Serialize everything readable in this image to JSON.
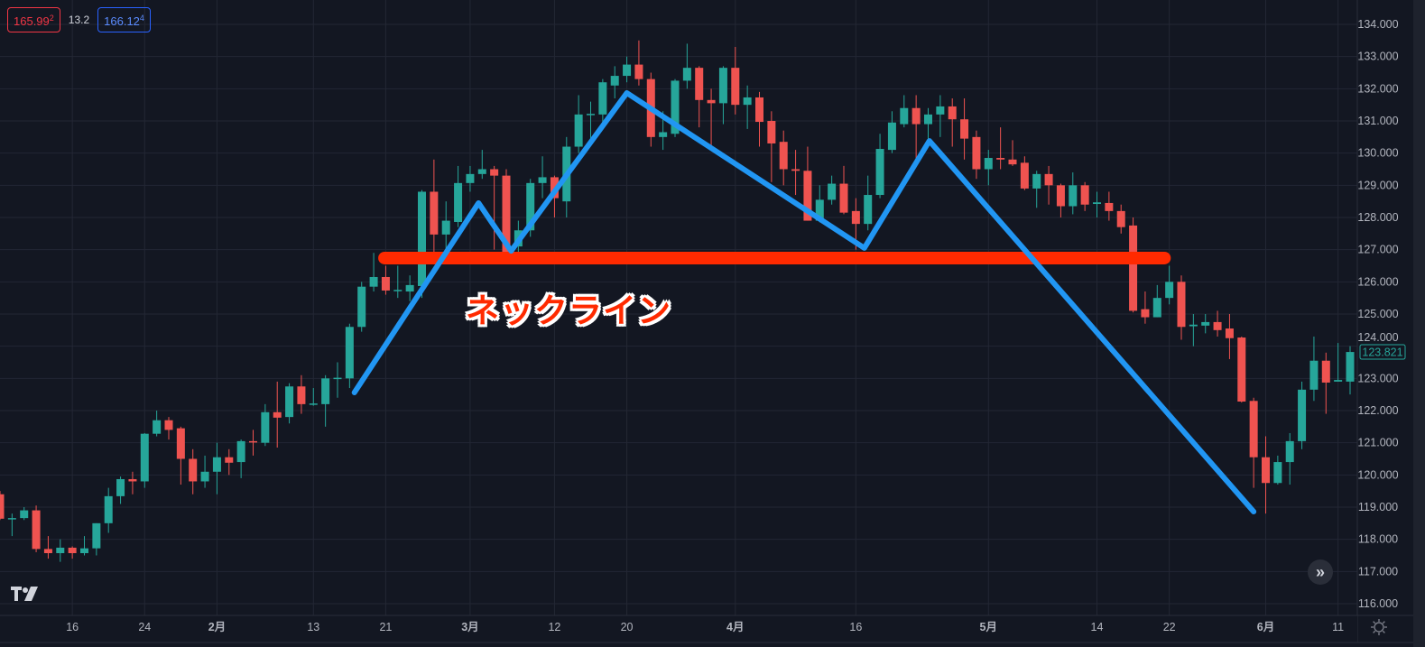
{
  "legend": {
    "bid": "165.99",
    "bid_sup": "2",
    "spread": "13.2",
    "ask": "166.12",
    "ask_sup": "4"
  },
  "colors": {
    "background": "#131722",
    "grid": "#232734",
    "up": "#26a69a",
    "down": "#ef5350",
    "zigzag": "#2196f3",
    "neckline": "#ff2a00",
    "axis_text": "#b2b5be"
  },
  "icons": {
    "logo": "tradingview-logo",
    "scroll": "double-chevron-right-icon",
    "settings": "gear-icon"
  },
  "chart_data": {
    "type": "candlestick",
    "ylim": [
      116,
      134
    ],
    "grid": true,
    "y_ticks": [
      "134.000",
      "133.000",
      "132.000",
      "131.000",
      "130.000",
      "129.000",
      "128.000",
      "127.000",
      "126.000",
      "125.000",
      "124.000",
      "123.000",
      "122.000",
      "121.000",
      "120.000",
      "119.000",
      "118.000",
      "117.000",
      "116.000"
    ],
    "last_price": "123.821",
    "x_ticks": [
      {
        "label": "16",
        "candle": 6
      },
      {
        "label": "24",
        "candle": 12
      },
      {
        "label": "2月",
        "candle": 18,
        "bold": true
      },
      {
        "label": "13",
        "candle": 26
      },
      {
        "label": "21",
        "candle": 32
      },
      {
        "label": "3月",
        "candle": 39,
        "bold": true
      },
      {
        "label": "12",
        "candle": 46
      },
      {
        "label": "20",
        "candle": 52
      },
      {
        "label": "4月",
        "candle": 61,
        "bold": true
      },
      {
        "label": "16",
        "candle": 71
      },
      {
        "label": "5月",
        "candle": 82,
        "bold": true
      },
      {
        "label": "14",
        "candle": 91
      },
      {
        "label": "22",
        "candle": 97
      },
      {
        "label": "6月",
        "candle": 105,
        "bold": true
      },
      {
        "label": "11",
        "candle": 111
      }
    ],
    "ohlc_fields": [
      "open",
      "high",
      "low",
      "close"
    ],
    "candles": [
      [
        119.4,
        119.5,
        118.6,
        118.64
      ],
      [
        118.64,
        118.8,
        118.1,
        118.66
      ],
      [
        118.66,
        119.0,
        118.6,
        118.9
      ],
      [
        118.9,
        119.05,
        117.6,
        117.7
      ],
      [
        117.7,
        118.1,
        117.4,
        117.57
      ],
      [
        117.57,
        118.0,
        117.3,
        117.74
      ],
      [
        117.74,
        117.78,
        117.4,
        117.57
      ],
      [
        117.57,
        118.1,
        117.5,
        117.72
      ],
      [
        117.72,
        118.5,
        117.5,
        118.5
      ],
      [
        118.5,
        119.6,
        118.2,
        119.34
      ],
      [
        119.34,
        119.95,
        119.1,
        119.87
      ],
      [
        119.87,
        120.1,
        119.4,
        119.8
      ],
      [
        119.8,
        121.3,
        119.6,
        121.28
      ],
      [
        121.28,
        122.0,
        121.2,
        121.7
      ],
      [
        121.7,
        121.8,
        121.1,
        121.4
      ],
      [
        121.45,
        121.5,
        119.7,
        120.5
      ],
      [
        120.5,
        120.8,
        119.4,
        119.8
      ],
      [
        119.8,
        120.6,
        119.6,
        120.1
      ],
      [
        120.1,
        121.0,
        119.4,
        120.55
      ],
      [
        120.55,
        120.8,
        120.0,
        120.38
      ],
      [
        120.4,
        121.1,
        119.9,
        121.05
      ],
      [
        121.05,
        121.4,
        120.6,
        121.02
      ],
      [
        121.0,
        122.2,
        120.9,
        121.95
      ],
      [
        121.95,
        122.9,
        120.85,
        121.78
      ],
      [
        121.8,
        122.85,
        121.6,
        122.75
      ],
      [
        122.75,
        123.1,
        121.9,
        122.2
      ],
      [
        122.2,
        122.7,
        122.15,
        122.22
      ],
      [
        122.2,
        123.1,
        121.5,
        123.0
      ],
      [
        123.0,
        123.5,
        122.4,
        123.02
      ],
      [
        123.0,
        124.7,
        122.7,
        124.6
      ],
      [
        124.6,
        126.0,
        124.45,
        125.85
      ],
      [
        125.85,
        126.9,
        125.7,
        126.15
      ],
      [
        126.15,
        126.5,
        125.6,
        125.73
      ],
      [
        125.73,
        126.5,
        125.5,
        125.75
      ],
      [
        125.7,
        126.2,
        125.4,
        125.9
      ],
      [
        125.87,
        128.85,
        125.5,
        128.8
      ],
      [
        128.8,
        129.8,
        126.9,
        127.47
      ],
      [
        127.47,
        128.5,
        127.0,
        127.9
      ],
      [
        127.86,
        129.6,
        127.7,
        129.07
      ],
      [
        129.07,
        129.6,
        128.8,
        129.35
      ],
      [
        129.35,
        130.1,
        129.2,
        129.5
      ],
      [
        129.5,
        129.6,
        127.0,
        129.3
      ],
      [
        129.3,
        129.5,
        126.7,
        126.9
      ],
      [
        127.1,
        127.9,
        126.9,
        127.6
      ],
      [
        127.6,
        129.2,
        127.4,
        129.07
      ],
      [
        129.07,
        129.9,
        128.6,
        129.25
      ],
      [
        129.25,
        129.3,
        128.0,
        128.6
      ],
      [
        128.5,
        130.5,
        128.0,
        130.2
      ],
      [
        130.2,
        131.8,
        130.0,
        131.2
      ],
      [
        131.2,
        131.6,
        130.3,
        131.22
      ],
      [
        131.2,
        132.3,
        130.8,
        132.2
      ],
      [
        132.1,
        132.7,
        131.7,
        132.4
      ],
      [
        132.4,
        133.0,
        132.2,
        132.75
      ],
      [
        132.75,
        133.5,
        132.1,
        132.3
      ],
      [
        132.3,
        132.5,
        130.2,
        130.5
      ],
      [
        130.5,
        131.3,
        130.1,
        130.65
      ],
      [
        130.6,
        132.3,
        130.5,
        132.25
      ],
      [
        132.25,
        133.4,
        132.0,
        132.65
      ],
      [
        132.65,
        132.7,
        130.8,
        131.65
      ],
      [
        131.65,
        132.0,
        130.2,
        131.55
      ],
      [
        131.55,
        132.7,
        130.9,
        132.65
      ],
      [
        132.65,
        133.3,
        131.2,
        131.5
      ],
      [
        131.5,
        132.1,
        130.75,
        131.73
      ],
      [
        131.73,
        131.9,
        130.2,
        130.97
      ],
      [
        131.0,
        131.3,
        129.1,
        130.3
      ],
      [
        130.35,
        130.7,
        129.0,
        129.5
      ],
      [
        129.5,
        130.1,
        128.7,
        129.45
      ],
      [
        129.45,
        130.2,
        127.9,
        127.9
      ],
      [
        127.9,
        129.0,
        127.85,
        128.55
      ],
      [
        128.55,
        129.3,
        128.4,
        129.05
      ],
      [
        129.05,
        129.6,
        128.1,
        128.15
      ],
      [
        128.2,
        128.6,
        127.0,
        127.8
      ],
      [
        127.8,
        129.3,
        127.6,
        128.7
      ],
      [
        128.7,
        130.6,
        128.6,
        130.13
      ],
      [
        130.1,
        131.3,
        130.0,
        130.95
      ],
      [
        130.9,
        131.8,
        130.8,
        131.4
      ],
      [
        131.4,
        131.8,
        129.7,
        130.9
      ],
      [
        130.9,
        131.4,
        130.2,
        131.2
      ],
      [
        131.2,
        131.8,
        130.5,
        131.45
      ],
      [
        131.45,
        131.7,
        130.2,
        131.05
      ],
      [
        131.05,
        131.7,
        129.8,
        130.45
      ],
      [
        130.5,
        130.7,
        129.2,
        129.5
      ],
      [
        129.5,
        130.1,
        129.0,
        129.85
      ],
      [
        129.85,
        130.8,
        129.5,
        129.8
      ],
      [
        129.8,
        130.4,
        129.6,
        129.65
      ],
      [
        129.7,
        129.9,
        128.85,
        128.9
      ],
      [
        128.9,
        129.45,
        128.3,
        129.35
      ],
      [
        129.35,
        129.6,
        128.4,
        129.0
      ],
      [
        129.0,
        129.05,
        128.0,
        128.35
      ],
      [
        128.35,
        129.4,
        128.1,
        129.0
      ],
      [
        129.0,
        129.1,
        128.2,
        128.4
      ],
      [
        128.42,
        128.8,
        128.0,
        128.47
      ],
      [
        128.45,
        128.8,
        127.9,
        128.2
      ],
      [
        128.2,
        128.4,
        127.5,
        127.7
      ],
      [
        127.75,
        128.0,
        125.05,
        125.1
      ],
      [
        125.15,
        125.7,
        124.7,
        124.9
      ],
      [
        124.9,
        125.9,
        124.9,
        125.5
      ],
      [
        125.5,
        126.5,
        125.3,
        126.0
      ],
      [
        126.0,
        126.2,
        124.2,
        124.6
      ],
      [
        124.62,
        125.0,
        124.0,
        124.67
      ],
      [
        124.64,
        125.0,
        124.4,
        124.75
      ],
      [
        124.75,
        125.1,
        124.3,
        124.5
      ],
      [
        124.55,
        125.0,
        123.6,
        124.25
      ],
      [
        124.27,
        124.3,
        122.25,
        122.28
      ],
      [
        122.3,
        122.4,
        119.6,
        120.55
      ],
      [
        120.55,
        121.2,
        118.8,
        119.75
      ],
      [
        119.75,
        120.6,
        119.7,
        120.4
      ],
      [
        120.4,
        121.3,
        119.7,
        121.05
      ],
      [
        121.05,
        122.9,
        120.8,
        122.65
      ],
      [
        122.65,
        124.3,
        122.3,
        123.55
      ],
      [
        123.55,
        123.8,
        121.9,
        122.87
      ],
      [
        122.9,
        124.1,
        122.9,
        122.95
      ],
      [
        122.9,
        124.0,
        122.5,
        123.82
      ]
    ],
    "annotations": {
      "zigzag": [
        [
          29.4,
          122.56
        ],
        [
          39.7,
          128.45
        ],
        [
          42.4,
          126.96
        ],
        [
          52.0,
          131.87
        ],
        [
          71.7,
          127.05
        ],
        [
          77.1,
          130.38
        ],
        [
          104.0,
          118.86
        ]
      ],
      "neckline": {
        "from_candle": 31.9,
        "to_candle": 96.6,
        "price": 126.74
      },
      "neckline_label": "ネックライン"
    }
  }
}
